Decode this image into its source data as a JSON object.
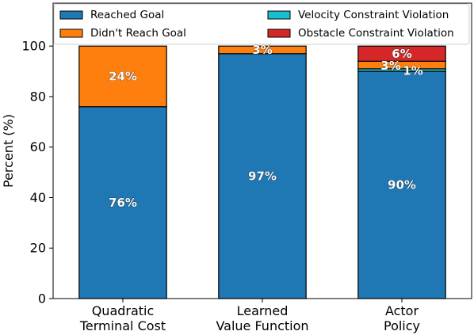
{
  "chart_data": {
    "type": "bar",
    "stacked": true,
    "ylabel": "Percent (%)",
    "xlabel": "",
    "ylim": [
      0,
      117
    ],
    "yticks": [
      0,
      20,
      40,
      60,
      80,
      100
    ],
    "grid": false,
    "legend_position": "top",
    "categories": [
      "Quadratic\nTerminal Cost",
      "Learned\nValue Function",
      "Actor\nPolicy"
    ],
    "series": [
      {
        "name": "Reached Goal",
        "color": "#1f77b4",
        "values": [
          76,
          97,
          90
        ]
      },
      {
        "name": "Velocity Constraint Violation",
        "color": "#17becf",
        "values": [
          0,
          0,
          1
        ]
      },
      {
        "name": "Didn't Reach Goal",
        "color": "#ff7f0e",
        "values": [
          24,
          3,
          3
        ]
      },
      {
        "name": "Obstacle Constraint Violation",
        "color": "#d62728",
        "values": [
          0,
          0,
          6
        ]
      }
    ],
    "data_labels": [
      [
        "76%",
        "",
        "24%",
        ""
      ],
      [
        "97%",
        "",
        "3%",
        ""
      ],
      [
        "90%",
        "1%",
        "3%",
        "6%"
      ]
    ],
    "legend_order": [
      0,
      2,
      1,
      3
    ]
  }
}
